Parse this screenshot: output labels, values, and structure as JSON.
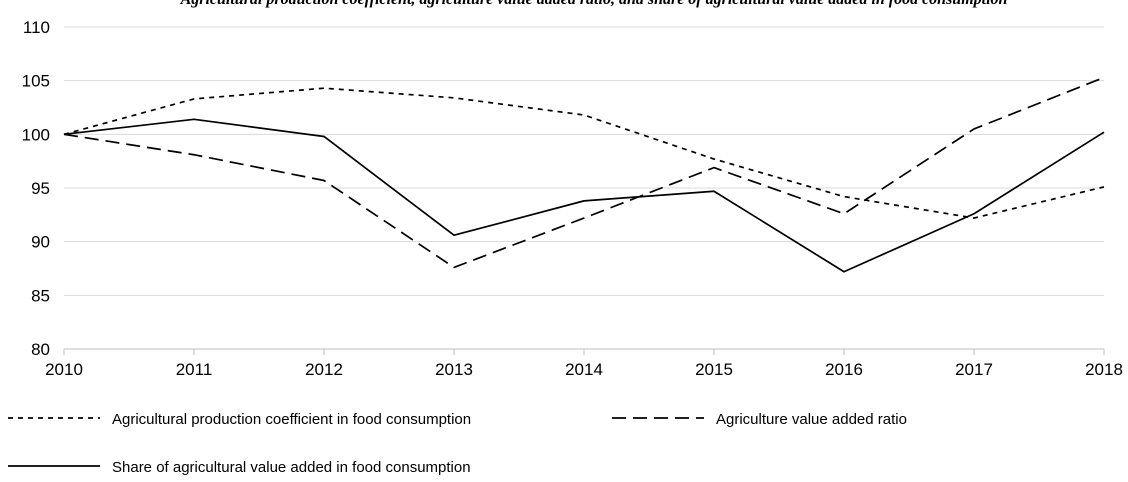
{
  "chart_data": {
    "type": "line",
    "title": "Agricultural production coefficient, agriculture value added ratio, and share of agricultural value added in food consumption",
    "xlabel": "",
    "ylabel": "",
    "categories": [
      "2010",
      "2011",
      "2012",
      "2013",
      "2014",
      "2015",
      "2016",
      "2017",
      "2018"
    ],
    "ylim": [
      80,
      110
    ],
    "yticks": [
      80,
      85,
      90,
      95,
      100,
      105,
      110
    ],
    "grid": "horizontal",
    "legend_position": "bottom",
    "series": [
      {
        "name": "Agricultural production coefficient in food consumption",
        "dash": "short-dash",
        "values": [
          100,
          103.3,
          104.3,
          103.4,
          101.8,
          97.7,
          94.2,
          92.2,
          95.1
        ]
      },
      {
        "name": "Agriculture value added ratio",
        "dash": "long-dash",
        "values": [
          100,
          98.1,
          95.7,
          87.6,
          92.2,
          96.9,
          92.6,
          100.5,
          105.3
        ]
      },
      {
        "name": "Share of agricultural value added in food consumption",
        "dash": "solid",
        "values": [
          100,
          101.4,
          99.8,
          90.6,
          93.8,
          94.7,
          87.2,
          92.6,
          100.2
        ]
      }
    ],
    "colors": {
      "line": "#000000",
      "grid": "#d9d9d9"
    }
  }
}
